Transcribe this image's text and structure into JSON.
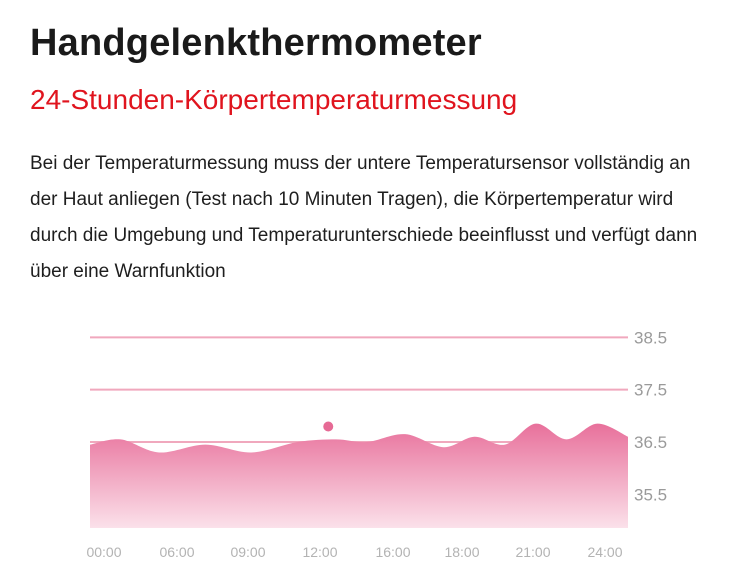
{
  "heading": {
    "title": "Handgelenkthermometer",
    "subtitle": "24-Stunden-Körpertemperaturmessung"
  },
  "description": "Bei der Temperaturmessung muss der untere Temperatursensor vollständig an der Haut anliegen (Test nach 10 Minuten Tragen), die Körpertemperatur wird durch die Umgebung und Temperaturunterschiede beeinflusst und verfügt dann über eine Warnfunktion",
  "colors": {
    "title": "#1a1a1a",
    "subtitle": "#e0141e",
    "area_top": "#e8709b",
    "area_bottom": "#fbe1ea",
    "reference_line": "#f0a8bd",
    "marker": "#e66a95"
  },
  "chart_data": {
    "type": "area",
    "y_ticks": [
      "38.5",
      "37.5",
      "36.5",
      "35.5"
    ],
    "y_tick_values": [
      38.5,
      37.5,
      36.5,
      35.5
    ],
    "ylim": [
      35.0,
      38.6
    ],
    "reference_lines": [
      38.5,
      37.5,
      36.5
    ],
    "x_ticks": [
      "00:00",
      "06:00",
      "09:00",
      "12:00",
      "16:00",
      "18:00",
      "21:00",
      "24:00"
    ],
    "x": [
      0.0,
      0.4,
      0.9,
      1.5,
      2.1,
      2.7,
      3.2,
      3.6,
      4.1,
      4.6,
      5.0,
      5.4,
      5.8,
      6.2,
      6.6,
      7.0
    ],
    "y": [
      36.45,
      36.55,
      36.3,
      36.45,
      36.3,
      36.5,
      36.55,
      36.5,
      36.65,
      36.4,
      36.6,
      36.45,
      36.85,
      36.55,
      36.85,
      36.6
    ],
    "marker": {
      "x": 3.1,
      "y": 36.72
    },
    "grid": false,
    "legend": "none"
  }
}
